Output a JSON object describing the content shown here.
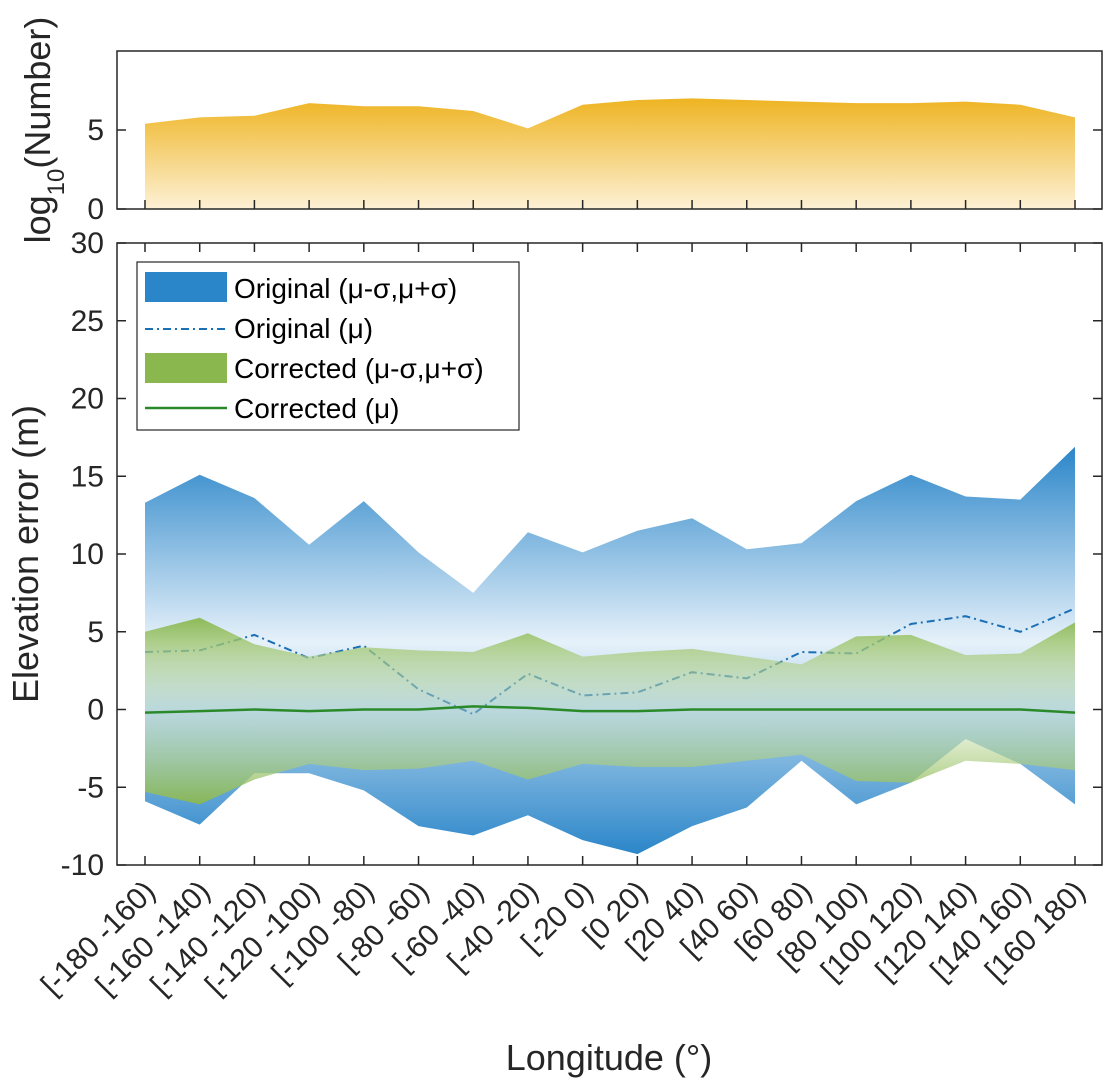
{
  "colors": {
    "count_fill_top": "#eeb422",
    "count_fill_bottom": "#fdf1d6",
    "original_band": "#2b86c9",
    "original_band_light": "#e6f1fa",
    "original_mean": "#1a6fb5",
    "corrected_band": "#8ab84f",
    "corrected_band_light": "#d8e9c3",
    "corrected_mean": "#2a8a2a",
    "axis": "#262626"
  },
  "chart_data": [
    {
      "type": "area",
      "panel": "top",
      "ylabel_main": "log",
      "ylabel_sub": "10",
      "ylabel_rest": "(Number)",
      "ylim": [
        0,
        10
      ],
      "yticks": [
        0,
        5
      ],
      "categories": [
        "[-180 -160)",
        "[-160 -140)",
        "[-140 -120)",
        "[-120 -100)",
        "[-100 -80)",
        "[-80 -60)",
        "[-60 -40)",
        "[-40 -20)",
        "[-20 0)",
        "[0 20)",
        "[20 40)",
        "[40 60)",
        "[60 80)",
        "[80 100)",
        "[100 120)",
        "[120 140)",
        "[140 160)",
        "[160 180)"
      ],
      "values": [
        5.4,
        5.8,
        5.9,
        6.7,
        6.5,
        6.5,
        6.2,
        5.1,
        6.6,
        6.9,
        7.0,
        6.9,
        6.8,
        6.7,
        6.7,
        6.8,
        6.6,
        5.8
      ]
    },
    {
      "type": "area",
      "panel": "bottom",
      "ylabel": "Elevation error (m)",
      "xlabel": "Longitude (°)",
      "ylim": [
        -10,
        30
      ],
      "yticks": [
        -10,
        -5,
        0,
        5,
        10,
        15,
        20,
        25,
        30
      ],
      "ytick_labels": [
        "-10",
        "-5",
        "0",
        "5",
        "10",
        "15",
        "20",
        "25",
        "30"
      ],
      "categories": [
        "[-180 -160)",
        "[-160 -140)",
        "[-140 -120)",
        "[-120 -100)",
        "[-100 -80)",
        "[-80 -60)",
        "[-60 -40)",
        "[-40 -20)",
        "[-20 0)",
        "[0 20)",
        "[20 40)",
        "[40 60)",
        "[60 80)",
        "[80 100)",
        "[100 120)",
        "[120 140)",
        "[140 160)",
        "[160 180)"
      ],
      "legend_placement": "top-left",
      "series": [
        {
          "key": "original_band",
          "name": "Original (μ-σ,μ+σ)",
          "kind": "band",
          "upper": [
            13.3,
            15.1,
            13.6,
            10.6,
            13.4,
            10.1,
            7.5,
            11.4,
            10.1,
            11.5,
            12.3,
            10.3,
            10.7,
            13.4,
            15.1,
            13.7,
            13.5,
            16.9
          ],
          "lower": [
            -5.9,
            -7.4,
            -4.1,
            -4.1,
            -5.2,
            -7.5,
            -8.1,
            -6.8,
            -8.4,
            -9.3,
            -7.5,
            -6.3,
            -3.3,
            -6.1,
            -4.7,
            -1.9,
            -3.5,
            -6.1
          ]
        },
        {
          "key": "original_mean",
          "name": "Original (μ)",
          "kind": "dashdot-line",
          "values": [
            3.7,
            3.8,
            4.8,
            3.3,
            4.1,
            1.3,
            -0.3,
            2.3,
            0.9,
            1.1,
            2.4,
            2.0,
            3.7,
            3.6,
            5.5,
            6.0,
            5.0,
            6.5
          ]
        },
        {
          "key": "corrected_band",
          "name": "Corrected (μ-σ,μ+σ)",
          "kind": "band",
          "upper": [
            5.0,
            5.9,
            4.2,
            3.4,
            4.0,
            3.8,
            3.7,
            4.9,
            3.4,
            3.7,
            3.9,
            3.4,
            2.9,
            4.7,
            4.8,
            3.5,
            3.6,
            5.6
          ],
          "lower": [
            -5.3,
            -6.1,
            -4.5,
            -3.5,
            -3.9,
            -3.8,
            -3.3,
            -4.5,
            -3.5,
            -3.7,
            -3.7,
            -3.3,
            -2.9,
            -4.6,
            -4.7,
            -3.3,
            -3.5,
            -3.9
          ]
        },
        {
          "key": "corrected_mean",
          "name": "Corrected (μ)",
          "kind": "line",
          "values": [
            -0.2,
            -0.1,
            0.0,
            -0.1,
            0.0,
            0.0,
            0.2,
            0.1,
            -0.1,
            -0.1,
            0.0,
            0.0,
            0.0,
            0.0,
            0.0,
            0.0,
            0.0,
            -0.2
          ]
        }
      ]
    }
  ]
}
